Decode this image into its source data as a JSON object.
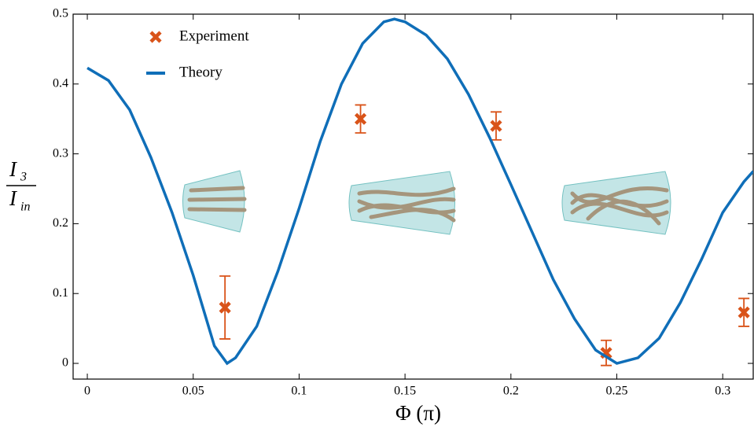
{
  "chart_data": {
    "type": "line",
    "xlabel": "Φ (π)",
    "ylabel": {
      "numerator": "I",
      "numerator_sub": "3",
      "denominator": "I",
      "denominator_sub": "in"
    },
    "xlim": [
      -0.0067,
      0.3144
    ],
    "ylim": [
      -0.0225,
      0.5
    ],
    "xticks": [
      0,
      0.05,
      0.1,
      0.15,
      0.2,
      0.25,
      0.3
    ],
    "yticks": [
      0,
      0.1,
      0.2,
      0.3,
      0.4,
      0.5
    ],
    "legend": "upper left",
    "series": [
      {
        "name": "Experiment",
        "type": "errorbar",
        "color": "#d95319",
        "x": [
          0.065,
          0.129,
          0.193,
          0.245,
          0.31
        ],
        "values": [
          0.08,
          0.35,
          0.34,
          0.015,
          0.073
        ],
        "errors": [
          0.045,
          0.02,
          0.02,
          0.018,
          0.02
        ]
      },
      {
        "name": "Theory",
        "type": "line",
        "color": "#0f6eb8",
        "x": [
          0,
          0.01,
          0.02,
          0.03,
          0.04,
          0.05,
          0.06,
          0.066,
          0.07,
          0.08,
          0.09,
          0.1,
          0.11,
          0.12,
          0.13,
          0.14,
          0.145,
          0.15,
          0.16,
          0.17,
          0.18,
          0.19,
          0.2,
          0.21,
          0.22,
          0.23,
          0.24,
          0.25,
          0.26,
          0.27,
          0.28,
          0.29,
          0.3,
          0.31,
          0.3144
        ],
        "values": [
          0.423,
          0.405,
          0.363,
          0.295,
          0.216,
          0.126,
          0.025,
          0,
          0.008,
          0.053,
          0.132,
          0.222,
          0.318,
          0.4,
          0.458,
          0.489,
          0.493,
          0.489,
          0.47,
          0.436,
          0.385,
          0.323,
          0.256,
          0.188,
          0.12,
          0.064,
          0.019,
          0,
          0.008,
          0.036,
          0.087,
          0.149,
          0.216,
          0.26,
          0.275
        ]
      }
    ]
  }
}
